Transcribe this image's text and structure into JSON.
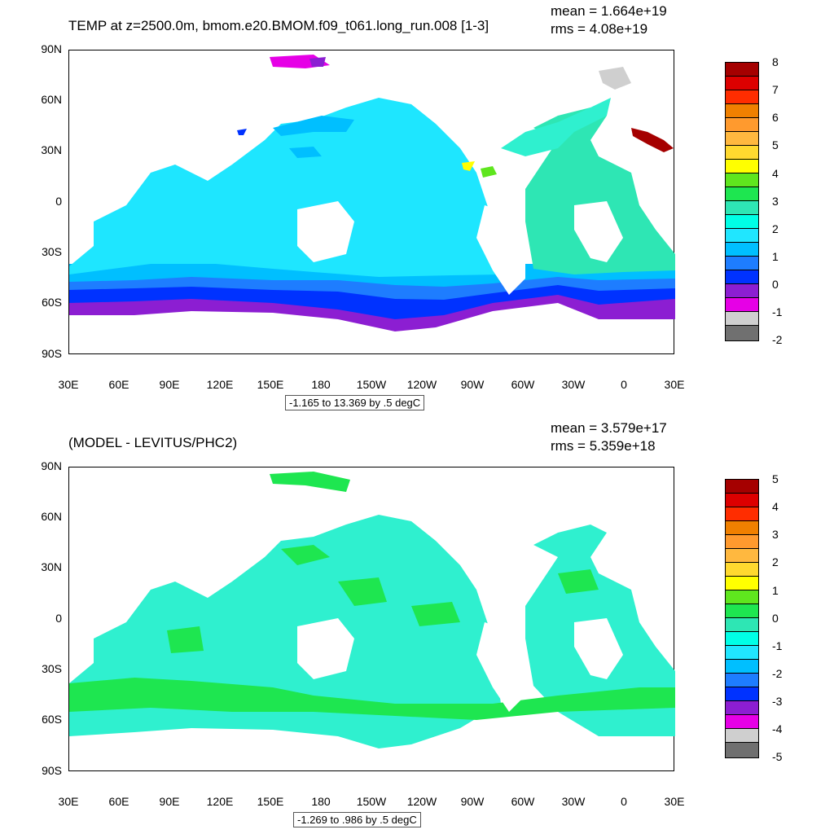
{
  "top": {
    "title": "TEMP at z=2500.0m, bmom.e20.BMOM.f09_t061.long_run.008 [1-3]",
    "mean": "mean = 1.664e+19",
    "rms": "rms = 4.08e+19",
    "range": "-1.165 to 13.369 by .5 degC",
    "colorbar_labels": [
      "8",
      "7",
      "6",
      "5",
      "4",
      "3",
      "2",
      "1",
      "0",
      "-1",
      "-2"
    ]
  },
  "bottom": {
    "title": "(MODEL - LEVITUS/PHC2)",
    "mean": "mean = 3.579e+17",
    "rms": "rms = 5.359e+18",
    "range": "-1.269 to .986 by .5 degC",
    "colorbar_labels": [
      "5",
      "4",
      "3",
      "2",
      "1",
      "0",
      "-1",
      "-2",
      "-3",
      "-4",
      "-5"
    ]
  },
  "axes": {
    "lat_labels": [
      "90N",
      "60N",
      "30N",
      "0",
      "30S",
      "60S",
      "90S"
    ],
    "lon_labels": [
      "30E",
      "60E",
      "90E",
      "120E",
      "150E",
      "180",
      "150W",
      "120W",
      "90W",
      "60W",
      "30W",
      "0",
      "30E"
    ]
  },
  "colors": {
    "colorbar": [
      "#a50000",
      "#dd0000",
      "#ff2d00",
      "#f08000",
      "#ff9a2e",
      "#ffb83f",
      "#ffd92f",
      "#ffff00",
      "#5fe61e",
      "#1ee650",
      "#2ee6b4",
      "#00ffe6",
      "#20e6ff",
      "#00bfff",
      "#1e7dff",
      "#0032ff",
      "#8c1ed2",
      "#e600e6",
      "#cfcfcf",
      "#707070"
    ],
    "ocean_top": "#1ee6ff",
    "ocean_bottom": "#2ff0cf"
  }
}
